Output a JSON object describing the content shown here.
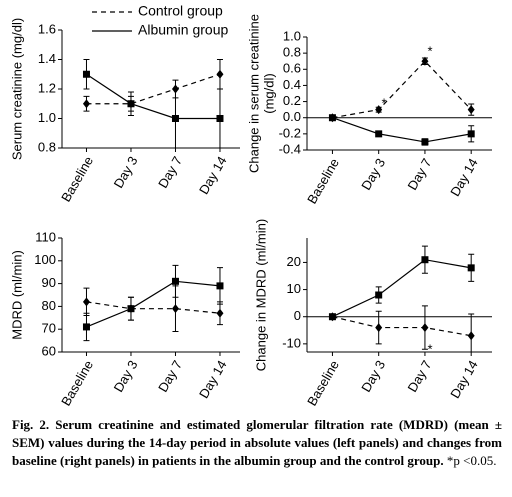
{
  "chart_data": [
    {
      "type": "line",
      "ylabel": [
        "Serum creatinine (mg/dl)"
      ],
      "categories": [
        "Baseline",
        "Day 3",
        "Day 7",
        "Day 14"
      ],
      "ylim": [
        0.8,
        1.6
      ],
      "yticks": [
        0.8,
        {
          "value": 1,
          "label": "1.0"
        },
        1.2,
        1.4,
        1.6
      ],
      "series": [
        {
          "name": "Control group",
          "color": "#000000",
          "dash": true,
          "marker": "diamond",
          "values": [
            1.1,
            1.1,
            1.2,
            1.3
          ],
          "errors": [
            0.05,
            0.05,
            0.06,
            0.1
          ]
        },
        {
          "name": "Albumin group",
          "color": "#000000",
          "dash": false,
          "marker": "square",
          "values": [
            1.3,
            1.1,
            1.0,
            1.0
          ],
          "errors": [
            0.1,
            0.08,
            0.2,
            0.2
          ]
        }
      ]
    },
    {
      "type": "line",
      "ylabel": [
        "Change in serum creatinine",
        "(mg/dl)"
      ],
      "categories": [
        "Baseline",
        "Day 3",
        "Day 7",
        "Day 14"
      ],
      "ylim": [
        -0.4,
        1.0
      ],
      "yticks": [
        -0.4,
        -0.2,
        {
          "value": 0,
          "label": "0.0"
        },
        0.2,
        0.4,
        0.6,
        0.8,
        {
          "value": 1,
          "label": "1.0"
        }
      ],
      "zero_line": true,
      "annotations": [
        "*",
        "*"
      ],
      "series": [
        {
          "color": "#000000",
          "dash": true,
          "marker": "diamond",
          "values": [
            0,
            0.1,
            0.7,
            0.1
          ],
          "errors": [
            0,
            0.03,
            0.04,
            0.07
          ]
        },
        {
          "color": "#000000",
          "dash": false,
          "marker": "square",
          "values": [
            0,
            -0.2,
            -0.3,
            -0.2
          ],
          "errors": [
            0,
            0.03,
            0.04,
            0.1
          ]
        }
      ]
    },
    {
      "type": "line",
      "ylabel": [
        "MDRD (ml/min)"
      ],
      "categories": [
        "Baseline",
        "Day 3",
        "Day 7",
        "Day 14"
      ],
      "ylim": [
        60,
        110
      ],
      "yticks": [
        60,
        70,
        80,
        90,
        100,
        110
      ],
      "series": [
        {
          "color": "#000000",
          "dash": true,
          "marker": "diamond",
          "values": [
            82,
            79,
            79,
            77
          ],
          "errors": [
            6,
            5,
            10,
            5
          ]
        },
        {
          "color": "#000000",
          "dash": false,
          "marker": "square",
          "values": [
            71,
            79,
            91,
            89
          ],
          "errors": [
            6,
            5,
            7,
            8
          ]
        }
      ]
    },
    {
      "type": "line",
      "ylabel": [
        "Change in MDRD (ml/min)"
      ],
      "categories": [
        "Baseline",
        "Day 3",
        "Day 7",
        "Day 14"
      ],
      "ylim": [
        -13,
        29
      ],
      "yticks": [
        -10,
        0,
        10,
        20
      ],
      "zero_line": true,
      "annotations": [
        "*"
      ],
      "series": [
        {
          "color": "#000000",
          "dash": true,
          "marker": "diamond",
          "values": [
            0,
            -4,
            -4,
            -7
          ],
          "errors": [
            0,
            6,
            8,
            8
          ]
        },
        {
          "color": "#000000",
          "dash": false,
          "marker": "square",
          "values": [
            0,
            8,
            21,
            18
          ],
          "errors": [
            0,
            3,
            5,
            5
          ]
        }
      ]
    }
  ],
  "caption": {
    "text": "Fig. 2. Serum creatinine and estimated glomerular filtration rate (MDRD) (mean ± SEM) values during the 14-day period in absolute values (left panels) and changes from baseline (right panels) in patients in the albumin group and the control group.",
    "note": "*p <0.05."
  }
}
